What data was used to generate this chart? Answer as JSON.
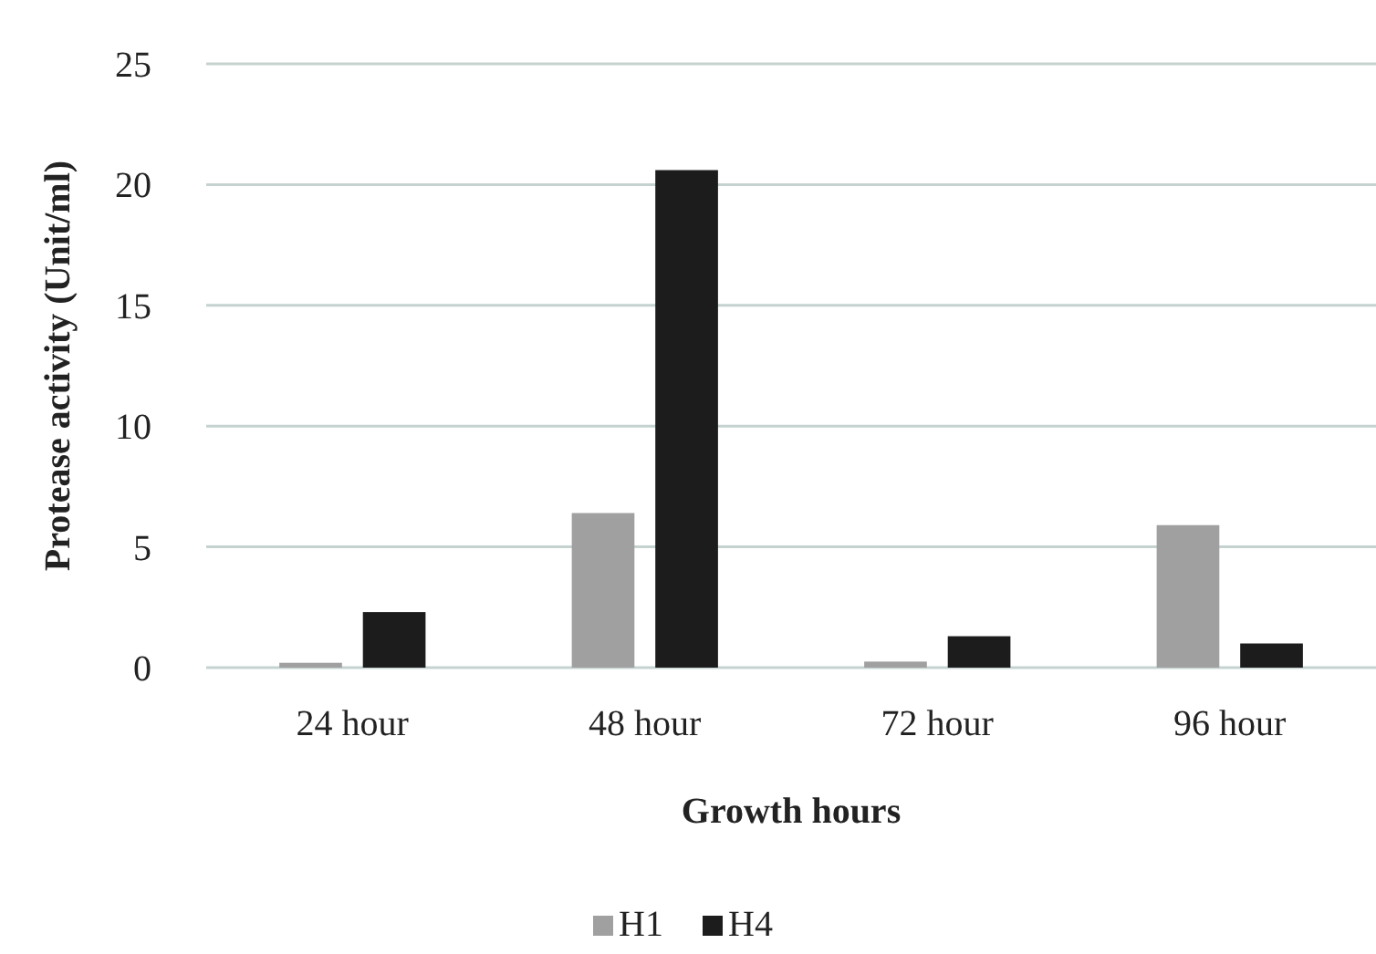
{
  "chart_data": {
    "type": "bar",
    "xlabel": "Growth hours",
    "ylabel": "Protease activity (Unit/ml)",
    "categories": [
      "24 hour",
      "48 hour",
      "72 hour",
      "96 hour"
    ],
    "series": [
      {
        "name": "H1",
        "color": "#a0a0a0",
        "values": [
          0.2,
          6.4,
          0.25,
          5.9
        ]
      },
      {
        "name": "H4",
        "color": "#1c1c1c",
        "values": [
          2.3,
          20.6,
          1.3,
          1.0
        ]
      }
    ],
    "ylim": [
      0,
      25
    ],
    "yticks": [
      0,
      5,
      10,
      15,
      20,
      25
    ],
    "grid": "y",
    "legend": "bottom"
  }
}
